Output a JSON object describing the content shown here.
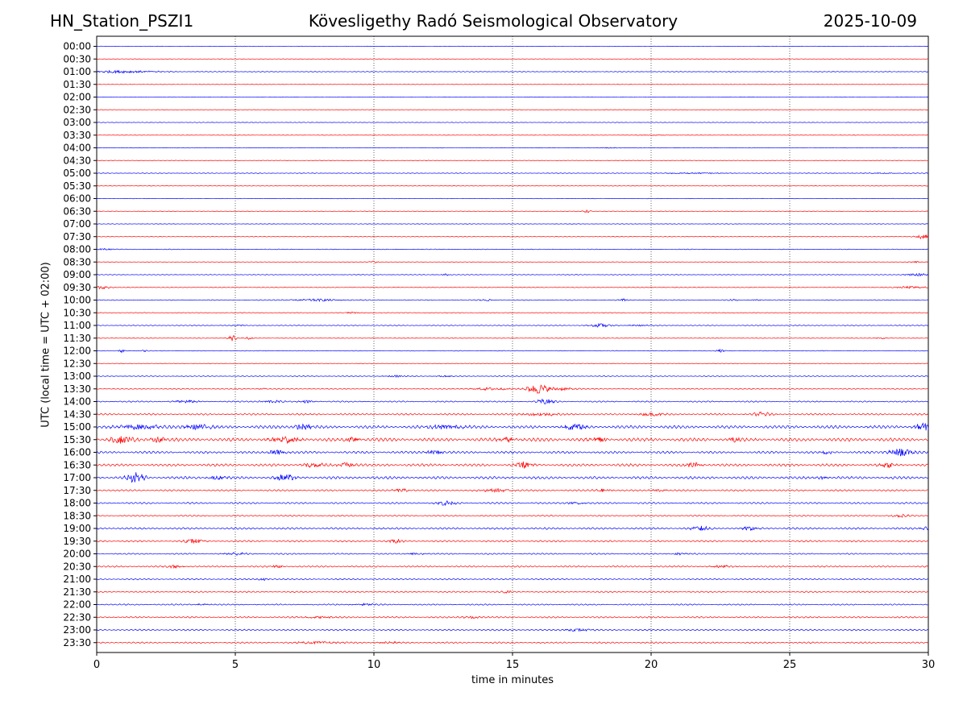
{
  "header": {
    "station": "HN_Station_PSZI1",
    "title": "Kövesligethy Radó Seismological Observatory",
    "date": "2025-10-09"
  },
  "chart_data": {
    "type": "line",
    "title": "Kövesligethy Radó Seismological Observatory",
    "xlabel": "time in minutes",
    "ylabel": "UTC (local time = UTC + 02:00)",
    "xlim": [
      0,
      30
    ],
    "x_ticks": [
      0,
      5,
      10,
      15,
      20,
      25,
      30
    ],
    "grid": "vertical dotted lines at x ticks",
    "colors": [
      "#0000ff",
      "#ff0000"
    ],
    "rows": [
      {
        "label": "00:00",
        "color": "#0000ff",
        "amplitude": 0.3,
        "events": []
      },
      {
        "label": "00:30",
        "color": "#ff0000",
        "amplitude": 0.3,
        "events": []
      },
      {
        "label": "01:00",
        "color": "#0000ff",
        "amplitude": 0.4,
        "events": [
          [
            0.9,
            3,
            1.2
          ]
        ]
      },
      {
        "label": "01:30",
        "color": "#ff0000",
        "amplitude": 0.3,
        "events": []
      },
      {
        "label": "02:00",
        "color": "#0000ff",
        "amplitude": 0.3,
        "events": []
      },
      {
        "label": "02:30",
        "color": "#ff0000",
        "amplitude": 0.3,
        "events": []
      },
      {
        "label": "03:00",
        "color": "#0000ff",
        "amplitude": 0.3,
        "events": []
      },
      {
        "label": "03:30",
        "color": "#ff0000",
        "amplitude": 0.3,
        "events": [
          [
            20.3,
            1.5,
            0.3
          ]
        ]
      },
      {
        "label": "04:00",
        "color": "#0000ff",
        "amplitude": 0.3,
        "events": [
          [
            18.5,
            1,
            0.3
          ]
        ]
      },
      {
        "label": "04:30",
        "color": "#ff0000",
        "amplitude": 0.3,
        "events": []
      },
      {
        "label": "05:00",
        "color": "#0000ff",
        "amplitude": 0.4,
        "events": [
          [
            21.5,
            2,
            0.5
          ],
          [
            28.5,
            1.5,
            0.3
          ]
        ]
      },
      {
        "label": "05:30",
        "color": "#ff0000",
        "amplitude": 0.3,
        "events": []
      },
      {
        "label": "06:00",
        "color": "#0000ff",
        "amplitude": 0.3,
        "events": []
      },
      {
        "label": "06:30",
        "color": "#ff0000",
        "amplitude": 0.3,
        "events": [
          [
            17.7,
            0.2,
            1.5
          ]
        ]
      },
      {
        "label": "07:00",
        "color": "#0000ff",
        "amplitude": 0.3,
        "events": []
      },
      {
        "label": "07:30",
        "color": "#ff0000",
        "amplitude": 0.4,
        "events": [
          [
            29.8,
            0.4,
            2.5
          ]
        ]
      },
      {
        "label": "08:00",
        "color": "#0000ff",
        "amplitude": 0.4,
        "events": [
          [
            0.3,
            0.6,
            1.0
          ]
        ]
      },
      {
        "label": "08:30",
        "color": "#ff0000",
        "amplitude": 0.3,
        "events": [
          [
            10.0,
            0.2,
            1.5
          ],
          [
            29.5,
            0.5,
            0.6
          ]
        ]
      },
      {
        "label": "09:00",
        "color": "#0000ff",
        "amplitude": 0.4,
        "events": [
          [
            12.6,
            0.2,
            1.2
          ],
          [
            29.6,
            0.8,
            1.5
          ]
        ]
      },
      {
        "label": "09:30",
        "color": "#ff0000",
        "amplitude": 0.4,
        "events": [
          [
            0.2,
            0.5,
            2.0
          ],
          [
            29.4,
            1.0,
            1.2
          ]
        ]
      },
      {
        "label": "10:00",
        "color": "#0000ff",
        "amplitude": 0.5,
        "events": [
          [
            8.0,
            2.2,
            1.0
          ],
          [
            14.1,
            0.6,
            0.8
          ],
          [
            19.0,
            0.2,
            1.2
          ],
          [
            23.0,
            0.2,
            1.0
          ],
          [
            23.8,
            0.2,
            0.8
          ]
        ]
      },
      {
        "label": "10:30",
        "color": "#ff0000",
        "amplitude": 0.4,
        "events": [
          [
            9.2,
            0.5,
            0.8
          ]
        ]
      },
      {
        "label": "11:00",
        "color": "#0000ff",
        "amplitude": 0.5,
        "events": [
          [
            18.2,
            0.8,
            1.8
          ],
          [
            19.5,
            0.8,
            0.5
          ],
          [
            5.2,
            0.3,
            0.6
          ]
        ]
      },
      {
        "label": "11:30",
        "color": "#ff0000",
        "amplitude": 0.4,
        "events": [
          [
            4.9,
            0.15,
            4.0
          ],
          [
            5.5,
            0.15,
            1.5
          ],
          [
            28.3,
            0.3,
            0.7
          ]
        ]
      },
      {
        "label": "12:00",
        "color": "#0000ff",
        "amplitude": 0.4,
        "events": [
          [
            0.9,
            0.15,
            2.0
          ],
          [
            1.7,
            0.2,
            0.7
          ],
          [
            22.5,
            0.15,
            2.0
          ]
        ]
      },
      {
        "label": "12:30",
        "color": "#ff0000",
        "amplitude": 0.3,
        "events": []
      },
      {
        "label": "13:00",
        "color": "#0000ff",
        "amplitude": 0.5,
        "events": [
          [
            10.8,
            0.8,
            0.8
          ],
          [
            12.5,
            0.5,
            0.6
          ]
        ]
      },
      {
        "label": "13:30",
        "color": "#ff0000",
        "amplitude": 0.6,
        "events": [
          [
            14.2,
            1.5,
            1.2
          ],
          [
            15.9,
            0.7,
            5.5
          ],
          [
            16.8,
            1.0,
            1.5
          ],
          [
            6.0,
            0.2,
            0.8
          ]
        ]
      },
      {
        "label": "14:00",
        "color": "#0000ff",
        "amplitude": 0.8,
        "events": [
          [
            3.2,
            0.8,
            1.2
          ],
          [
            6.3,
            0.8,
            1.2
          ],
          [
            7.6,
            0.4,
            1.2
          ],
          [
            16.2,
            0.5,
            3.0
          ]
        ]
      },
      {
        "label": "14:30",
        "color": "#ff0000",
        "amplitude": 1.0,
        "events": [
          [
            16.0,
            1.2,
            1.5
          ],
          [
            24.0,
            0.5,
            2.2
          ],
          [
            20.0,
            1.0,
            1.2
          ]
        ]
      },
      {
        "label": "15:00",
        "color": "#0000ff",
        "amplitude": 1.8,
        "events": [
          [
            1.5,
            1.2,
            2.5
          ],
          [
            3.6,
            0.8,
            2.5
          ],
          [
            7.4,
            0.6,
            2.5
          ],
          [
            12.6,
            1.0,
            2.0
          ],
          [
            17.2,
            0.8,
            2.2
          ],
          [
            29.8,
            0.5,
            4.0
          ]
        ]
      },
      {
        "label": "15:30",
        "color": "#ff0000",
        "amplitude": 2.0,
        "events": [
          [
            0.9,
            0.7,
            3.5
          ],
          [
            2.2,
            0.5,
            2.5
          ],
          [
            6.8,
            1.0,
            3.0
          ],
          [
            9.2,
            0.5,
            2.0
          ],
          [
            14.8,
            0.6,
            2.0
          ],
          [
            18.2,
            0.5,
            2.2
          ],
          [
            23.0,
            0.3,
            2.0
          ]
        ]
      },
      {
        "label": "16:00",
        "color": "#0000ff",
        "amplitude": 1.4,
        "events": [
          [
            6.5,
            0.5,
            2.5
          ],
          [
            12.2,
            0.6,
            2.0
          ],
          [
            29.0,
            0.8,
            4.0
          ],
          [
            26.3,
            0.3,
            1.8
          ]
        ]
      },
      {
        "label": "16:30",
        "color": "#ff0000",
        "amplitude": 1.6,
        "events": [
          [
            9.0,
            0.6,
            2.5
          ],
          [
            7.8,
            0.6,
            2.0
          ],
          [
            15.4,
            0.5,
            3.0
          ],
          [
            21.5,
            0.5,
            2.2
          ],
          [
            28.5,
            0.5,
            2.0
          ]
        ]
      },
      {
        "label": "17:00",
        "color": "#0000ff",
        "amplitude": 1.6,
        "events": [
          [
            1.4,
            0.5,
            6.0
          ],
          [
            6.8,
            0.6,
            3.0
          ],
          [
            4.3,
            0.5,
            1.5
          ],
          [
            26.2,
            0.3,
            1.5
          ]
        ]
      },
      {
        "label": "17:30",
        "color": "#ff0000",
        "amplitude": 1.0,
        "events": [
          [
            11.0,
            0.5,
            1.8
          ],
          [
            14.5,
            1.0,
            1.5
          ],
          [
            18.3,
            0.5,
            1.5
          ],
          [
            20.3,
            0.5,
            1.3
          ]
        ]
      },
      {
        "label": "18:00",
        "color": "#0000ff",
        "amplitude": 1.0,
        "events": [
          [
            12.6,
            0.6,
            2.5
          ],
          [
            17.3,
            0.5,
            1.2
          ]
        ]
      },
      {
        "label": "18:30",
        "color": "#ff0000",
        "amplitude": 0.8,
        "events": [
          [
            29.0,
            0.6,
            1.2
          ]
        ]
      },
      {
        "label": "19:00",
        "color": "#0000ff",
        "amplitude": 1.2,
        "events": [
          [
            21.8,
            0.6,
            2.2
          ],
          [
            23.6,
            0.5,
            1.5
          ],
          [
            29.9,
            0.3,
            2.0
          ]
        ]
      },
      {
        "label": "19:30",
        "color": "#ff0000",
        "amplitude": 1.0,
        "events": [
          [
            3.5,
            0.6,
            2.0
          ],
          [
            10.8,
            0.5,
            1.5
          ]
        ]
      },
      {
        "label": "20:00",
        "color": "#0000ff",
        "amplitude": 0.8,
        "events": [
          [
            5.0,
            0.8,
            1.2
          ],
          [
            11.5,
            0.5,
            1.0
          ],
          [
            21.0,
            0.4,
            1.2
          ]
        ]
      },
      {
        "label": "20:30",
        "color": "#ff0000",
        "amplitude": 0.9,
        "events": [
          [
            2.8,
            0.6,
            1.2
          ],
          [
            6.5,
            0.4,
            1.0
          ],
          [
            22.5,
            0.6,
            1.0
          ]
        ]
      },
      {
        "label": "21:00",
        "color": "#0000ff",
        "amplitude": 0.8,
        "events": [
          [
            6.0,
            0.4,
            1.0
          ]
        ]
      },
      {
        "label": "21:30",
        "color": "#ff0000",
        "amplitude": 0.8,
        "events": [
          [
            14.8,
            0.2,
            1.5
          ]
        ]
      },
      {
        "label": "22:00",
        "color": "#0000ff",
        "amplitude": 0.8,
        "events": [
          [
            9.6,
            0.8,
            1.0
          ],
          [
            3.8,
            0.4,
            0.9
          ]
        ]
      },
      {
        "label": "22:30",
        "color": "#ff0000",
        "amplitude": 0.9,
        "events": [
          [
            8.0,
            1.0,
            1.0
          ],
          [
            13.5,
            0.6,
            1.2
          ]
        ]
      },
      {
        "label": "23:00",
        "color": "#0000ff",
        "amplitude": 0.9,
        "events": [
          [
            17.3,
            0.8,
            1.2
          ]
        ]
      },
      {
        "label": "23:30",
        "color": "#ff0000",
        "amplitude": 0.9,
        "events": [
          [
            8.0,
            1.2,
            1.0
          ],
          [
            10.5,
            0.6,
            0.9
          ]
        ]
      }
    ]
  }
}
